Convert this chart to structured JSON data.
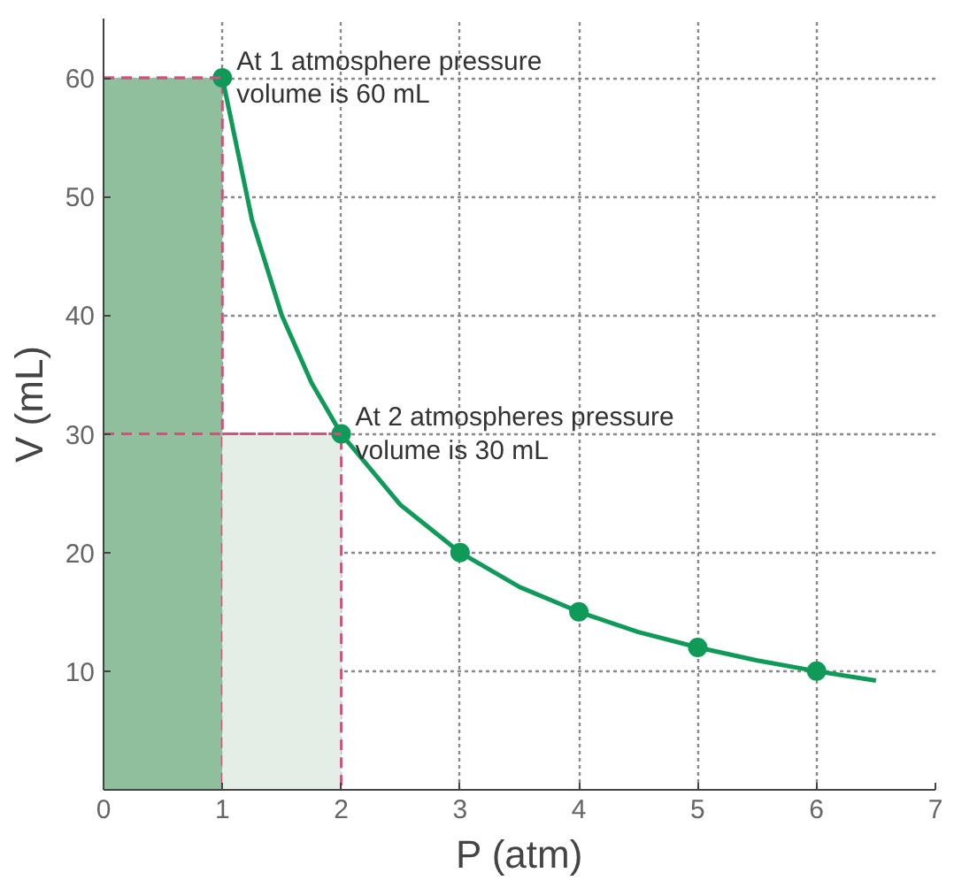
{
  "chart_data": {
    "type": "line",
    "xlabel": "P (atm)",
    "ylabel": "V (mL)",
    "xlim": [
      0,
      7
    ],
    "ylim": [
      0,
      65
    ],
    "xticks": [
      0,
      1,
      2,
      3,
      4,
      5,
      6,
      7
    ],
    "yticks": [
      10,
      20,
      30,
      40,
      50,
      60
    ],
    "grid": true,
    "series": [
      {
        "type": "area",
        "color": "#8fbf9c",
        "line_style": "dashed",
        "x": [
          0,
          1
        ],
        "values": [
          60,
          60
        ]
      },
      {
        "type": "area",
        "color": "#e3efe6",
        "line_style": "dashed",
        "x": [
          1,
          2
        ],
        "values": [
          30,
          30
        ]
      },
      {
        "color": "#0f9a5a",
        "marker": "none",
        "x": [
          1,
          1.25,
          1.5,
          1.75,
          2,
          2.5,
          3,
          3.5,
          4,
          4.5,
          5,
          5.5,
          6,
          6.5
        ],
        "values": [
          60,
          48,
          40,
          34.3,
          30,
          24,
          20,
          17.1,
          15,
          13.3,
          12,
          10.9,
          10,
          9.2
        ]
      },
      {
        "type": "scatter",
        "color": "#0f9a5a",
        "marker": "circle",
        "x": [
          1,
          2,
          3,
          4,
          5,
          6
        ],
        "values": [
          60,
          30,
          20,
          15,
          12,
          10
        ]
      }
    ],
    "ref_lines": [
      {
        "axis": "y",
        "value": 60,
        "color": "#c9577a",
        "line_style": "dashed"
      },
      {
        "axis": "y",
        "value": 30,
        "color": "#c9577a",
        "line_style": "dashed"
      }
    ],
    "annotations": [
      {
        "text": "At 1 atmosphere pressure\nvolume is 60 mL",
        "x": 1,
        "y": 60
      },
      {
        "text": "At 2 atmospheres pressure\nvolume is 30 mL",
        "x": 2,
        "y": 30
      }
    ]
  }
}
